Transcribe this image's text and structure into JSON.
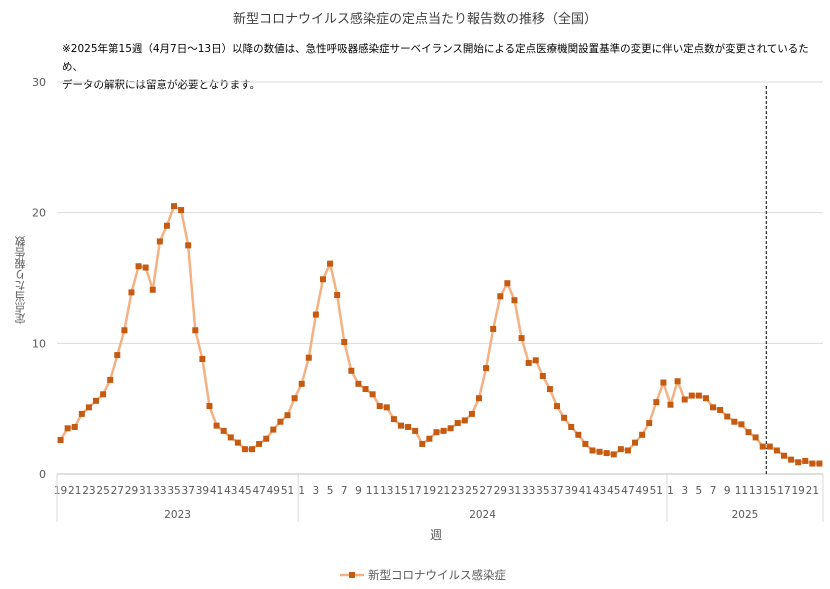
{
  "chart_data": {
    "type": "line",
    "title": "新型コロナウイルス感染症の定点当たり報告数の推移（全国）",
    "note_lines": [
      "※2025年第15週（4月7日～13日）以降の数値は、急性呼吸器感染症サーベイランス開始による定点医療機関設置基準の変更に伴い定点数が変更されているため、",
      "データの解釈には留意が必要となります。"
    ],
    "xlabel": "週",
    "ylabel": "定点当たり報告数",
    "ylim": [
      0,
      30
    ],
    "yticks": [
      0,
      10,
      20,
      30
    ],
    "grid": true,
    "legend": "bottom",
    "series_color": "#f4b183",
    "marker_color": "#c55a11",
    "years": [
      {
        "label": "2023",
        "weeks": [
          19,
          20,
          21,
          22,
          23,
          24,
          25,
          26,
          27,
          28,
          29,
          30,
          31,
          32,
          33,
          34,
          35,
          36,
          37,
          38,
          39,
          40,
          41,
          42,
          43,
          44,
          45,
          46,
          47,
          48,
          49,
          50,
          51,
          52
        ]
      },
      {
        "label": "2024",
        "weeks": [
          1,
          2,
          3,
          4,
          5,
          6,
          7,
          8,
          9,
          10,
          11,
          12,
          13,
          14,
          15,
          16,
          17,
          18,
          19,
          20,
          21,
          22,
          23,
          24,
          25,
          26,
          27,
          28,
          29,
          30,
          31,
          32,
          33,
          34,
          35,
          36,
          37,
          38,
          39,
          40,
          41,
          42,
          43,
          44,
          45,
          46,
          47,
          48,
          49,
          50,
          51,
          52
        ]
      },
      {
        "label": "2025",
        "weeks": [
          1,
          2,
          3,
          4,
          5,
          6,
          7,
          8,
          9,
          10,
          11,
          12,
          13,
          14,
          15,
          16,
          17,
          18,
          19,
          20,
          21,
          22
        ]
      }
    ],
    "week_tick_labels": [
      "19",
      "21",
      "23",
      "25",
      "27",
      "29",
      "31",
      "33",
      "35",
      "37",
      "39",
      "41",
      "43",
      "45",
      "47",
      "49",
      "51",
      "1",
      "3",
      "5",
      "7",
      "9",
      "11",
      "13",
      "15",
      "17",
      "19",
      "21",
      "23",
      "25",
      "27",
      "29",
      "31",
      "33",
      "35",
      "37",
      "39",
      "41",
      "43",
      "45",
      "47",
      "49",
      "51",
      "1",
      "3",
      "5",
      "7",
      "9",
      "11",
      "13",
      "15",
      "17",
      "19",
      "21"
    ],
    "series": [
      {
        "name": "新型コロナウイルス感染症",
        "values": [
          2.6,
          3.5,
          3.6,
          4.6,
          5.1,
          5.6,
          6.1,
          7.2,
          9.1,
          11.0,
          13.9,
          15.9,
          15.8,
          14.1,
          17.8,
          19.0,
          20.5,
          20.2,
          17.5,
          11.0,
          8.8,
          5.2,
          3.7,
          3.3,
          2.8,
          2.4,
          1.9,
          1.9,
          2.3,
          2.7,
          3.4,
          4.0,
          4.5,
          5.8,
          6.9,
          8.9,
          12.2,
          14.9,
          16.1,
          13.7,
          10.1,
          7.9,
          6.9,
          6.5,
          6.1,
          5.2,
          5.1,
          4.2,
          3.7,
          3.6,
          3.3,
          2.3,
          2.7,
          3.2,
          3.3,
          3.5,
          3.9,
          4.1,
          4.6,
          5.8,
          8.1,
          11.1,
          13.6,
          14.6,
          13.3,
          10.4,
          8.5,
          8.7,
          7.5,
          6.5,
          5.2,
          4.3,
          3.6,
          3.0,
          2.3,
          1.8,
          1.7,
          1.6,
          1.5,
          1.9,
          1.8,
          2.4,
          3.0,
          3.9,
          5.5,
          7.0,
          5.3,
          7.1,
          5.7,
          6.0,
          6.0,
          5.8,
          5.1,
          4.9,
          4.4,
          4.0,
          3.8,
          3.2,
          2.8,
          2.1,
          2.1,
          1.8,
          1.4,
          1.1,
          0.9,
          1.0,
          0.8,
          0.8
        ]
      }
    ],
    "marker_label": "2025-W15"
  }
}
